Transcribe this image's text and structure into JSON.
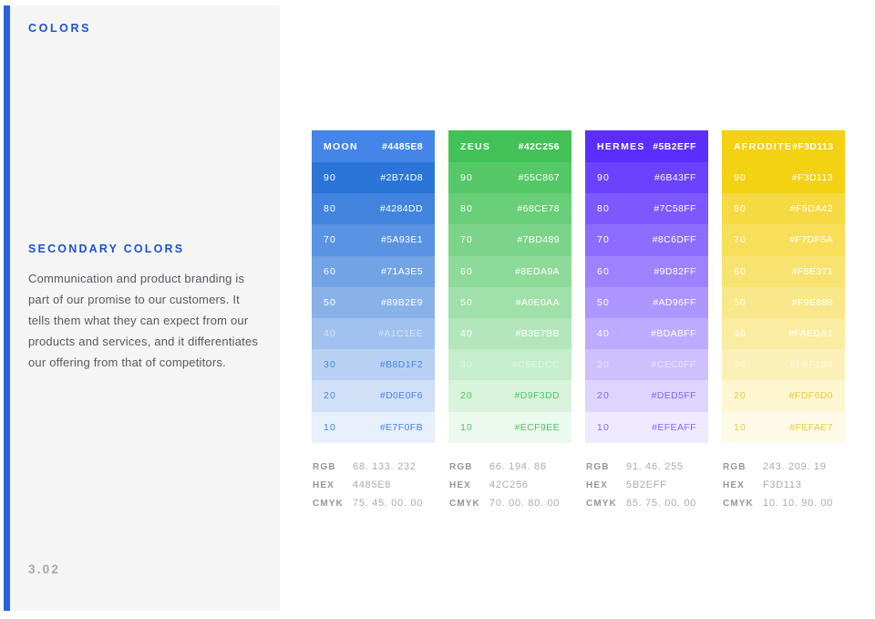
{
  "page": {
    "section_label": "COLORS",
    "page_number": "3.02",
    "accent_bar_color": "#2563E0",
    "heading_color": "#1C54CE",
    "sidebar_bg": "#F5F5F6"
  },
  "secondary": {
    "title": "SECONDARY COLORS",
    "body": "Communication and product branding is part of our promise to our customers. It tells them what they can expect from our products and services, and it differentiates our offering from that of competitors."
  },
  "info_labels": {
    "rgb": "RGB",
    "hex": "HEX",
    "cmyk": "CMYK"
  },
  "palettes": [
    {
      "name": "MOON",
      "base_hex": "#4485E8",
      "tint_text_color": "#4485E8",
      "rgb": "68. 133. 232",
      "hex": "4485E8",
      "cmyk": "75. 45. 00. 00",
      "shades": [
        {
          "level": "90",
          "hex": "#2B74D8",
          "text": "white"
        },
        {
          "level": "80",
          "hex": "#4284DD",
          "text": "white"
        },
        {
          "level": "70",
          "hex": "#5A93E1",
          "text": "white"
        },
        {
          "level": "60",
          "hex": "#71A3E5",
          "text": "white"
        },
        {
          "level": "50",
          "hex": "#89B2E9",
          "text": "white"
        },
        {
          "level": "40",
          "hex": "#A1C1EE",
          "text": "faded"
        },
        {
          "level": "30",
          "hex": "#B8D1F2",
          "text": "tint"
        },
        {
          "level": "20",
          "hex": "#D0E0F6",
          "text": "tint"
        },
        {
          "level": "10",
          "hex": "#E7F0FB",
          "text": "tint"
        }
      ]
    },
    {
      "name": "ZEUS",
      "base_hex": "#42C256",
      "tint_text_color": "#54C366",
      "rgb": "66. 194. 86",
      "hex": "42C256",
      "cmyk": "70. 00. 80. 00",
      "shades": [
        {
          "level": "90",
          "hex": "#55C867",
          "text": "white"
        },
        {
          "level": "80",
          "hex": "#68CE78",
          "text": "white"
        },
        {
          "level": "70",
          "hex": "#7BD489",
          "text": "white"
        },
        {
          "level": "60",
          "hex": "#8EDA9A",
          "text": "white"
        },
        {
          "level": "50",
          "hex": "#A0E0AA",
          "text": "white"
        },
        {
          "level": "40",
          "hex": "#B3E7BB",
          "text": "white"
        },
        {
          "level": "30",
          "hex": "#C6EDCC",
          "text": "faded"
        },
        {
          "level": "20",
          "hex": "#D9F3DD",
          "text": "tint"
        },
        {
          "level": "10",
          "hex": "#ECF9EE",
          "text": "tint"
        }
      ]
    },
    {
      "name": "HERMES",
      "base_hex": "#5B2EFF",
      "tint_text_color": "#8266FF",
      "rgb": "91. 46. 255",
      "hex": "5B2EFF",
      "cmyk": "85. 75. 00. 00",
      "shades": [
        {
          "level": "90",
          "hex": "#6B43FF",
          "text": "white"
        },
        {
          "level": "80",
          "hex": "#7C58FF",
          "text": "white"
        },
        {
          "level": "70",
          "hex": "#8C6DFF",
          "text": "white"
        },
        {
          "level": "60",
          "hex": "#9D82FF",
          "text": "white"
        },
        {
          "level": "50",
          "hex": "#AD96FF",
          "text": "white"
        },
        {
          "level": "40",
          "hex": "#BDABFF",
          "text": "white"
        },
        {
          "level": "30",
          "hex": "#CEC0FF",
          "text": "faded"
        },
        {
          "level": "20",
          "hex": "#DED5FF",
          "text": "tint"
        },
        {
          "level": "10",
          "hex": "#EFEAFF",
          "text": "tint"
        }
      ]
    },
    {
      "name": "AFRODITE",
      "base_hex": "#F3D113",
      "tint_text_color": "#EDCB35",
      "rgb": "243. 209. 19",
      "hex": "F3D113",
      "cmyk": "10. 10. 90. 00",
      "shades": [
        {
          "level": "90",
          "hex": "#F3D113",
          "text": "white"
        },
        {
          "level": "80",
          "hex": "#F5DA42",
          "text": "white"
        },
        {
          "level": "70",
          "hex": "#F7DF5A",
          "text": "white"
        },
        {
          "level": "60",
          "hex": "#F8E371",
          "text": "white"
        },
        {
          "level": "50",
          "hex": "#F9E889",
          "text": "white"
        },
        {
          "level": "40",
          "hex": "#FAEDA1",
          "text": "white"
        },
        {
          "level": "30",
          "hex": "#FBF1B8",
          "text": "faded"
        },
        {
          "level": "20",
          "hex": "#FDF6D0",
          "text": "tint"
        },
        {
          "level": "10",
          "hex": "#FEFAE7",
          "text": "tint"
        }
      ]
    }
  ]
}
